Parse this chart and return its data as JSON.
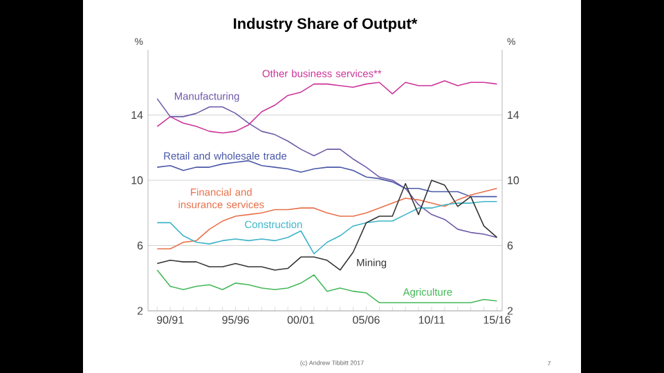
{
  "chart_data": {
    "type": "line",
    "title": "Industry Share of Output*",
    "ylabel": "%",
    "y2label": "%",
    "categories": [
      null,
      "90/91",
      null,
      null,
      null,
      null,
      "95/96",
      null,
      null,
      null,
      null,
      "00/01",
      null,
      null,
      null,
      null,
      "05/06",
      null,
      null,
      null,
      null,
      "10/11",
      null,
      null,
      null,
      null,
      "15/16"
    ],
    "series": [
      {
        "name": "Other business services**",
        "color": "#cc3399",
        "values": [
          13.3,
          13.9,
          13.5,
          13.3,
          13.0,
          12.9,
          13.0,
          13.4,
          14.2,
          14.6,
          15.2,
          15.4,
          15.9,
          15.9,
          15.8,
          15.7,
          15.9,
          16.0,
          15.3,
          16.0,
          15.8,
          15.8,
          16.1,
          15.8,
          16.0,
          16.0,
          15.9
        ]
      },
      {
        "name": "Manufacturing",
        "color": "#6e5aa8",
        "values": [
          15.0,
          13.9,
          13.9,
          14.1,
          14.5,
          14.5,
          14.1,
          13.5,
          13.0,
          12.8,
          12.4,
          11.9,
          11.5,
          11.9,
          11.9,
          11.3,
          10.8,
          10.2,
          10.0,
          9.5,
          8.5,
          7.9,
          7.6,
          7.0,
          6.8,
          6.7,
          6.5
        ]
      },
      {
        "name": "Retail and wholesale trade",
        "color": "#4a58a8",
        "values": [
          10.8,
          10.9,
          10.6,
          10.8,
          10.8,
          11.0,
          11.1,
          11.2,
          10.9,
          10.8,
          10.7,
          10.5,
          10.7,
          10.8,
          10.8,
          10.6,
          10.2,
          10.1,
          9.9,
          9.5,
          9.5,
          9.3,
          9.3,
          9.3,
          9.0,
          9.0,
          9.0
        ]
      },
      {
        "name": "Financial and insurance services",
        "color": "#e8704a",
        "values": [
          5.8,
          5.8,
          6.2,
          6.3,
          7.0,
          7.5,
          7.8,
          7.9,
          8.0,
          8.2,
          8.2,
          8.3,
          8.3,
          8.0,
          7.8,
          7.8,
          8.0,
          8.3,
          8.6,
          8.9,
          8.8,
          8.6,
          8.4,
          8.8,
          9.1,
          9.3,
          9.5
        ]
      },
      {
        "name": "Construction",
        "color": "#3cb4c8",
        "values": [
          7.4,
          7.4,
          6.6,
          6.2,
          6.1,
          6.3,
          6.4,
          6.3,
          6.4,
          6.3,
          6.5,
          6.9,
          5.5,
          6.2,
          6.6,
          7.2,
          7.4,
          7.5,
          7.5,
          7.9,
          8.3,
          8.3,
          8.5,
          8.6,
          8.6,
          8.7,
          8.7
        ]
      },
      {
        "name": "Mining",
        "color": "#333333",
        "values": [
          4.9,
          5.1,
          5.0,
          5.0,
          4.7,
          4.7,
          4.9,
          4.7,
          4.7,
          4.5,
          4.6,
          5.3,
          5.3,
          5.1,
          4.5,
          5.6,
          7.4,
          7.8,
          7.8,
          9.8,
          7.9,
          10.0,
          9.7,
          8.4,
          9.0,
          7.2,
          6.5
        ]
      },
      {
        "name": "Agriculture",
        "color": "#44b858",
        "values": [
          4.5,
          3.5,
          3.3,
          3.5,
          3.6,
          3.3,
          3.7,
          3.6,
          3.4,
          3.3,
          3.4,
          3.7,
          4.2,
          3.2,
          3.4,
          3.2,
          3.1,
          2.5,
          2.5,
          2.5,
          2.5,
          2.5,
          2.5,
          2.5,
          2.5,
          2.7,
          2.6
        ]
      }
    ],
    "ylim": [
      2,
      18
    ],
    "yticks": [
      2,
      6,
      10,
      14
    ],
    "y2lim": [
      2,
      18
    ],
    "y2ticks": [
      2,
      6,
      10,
      14
    ],
    "grid": "y",
    "legend": false,
    "marker": "none",
    "line_style": "solid",
    "annotations": [
      "(c) Andrew Tibbitt 2017",
      "7"
    ]
  }
}
